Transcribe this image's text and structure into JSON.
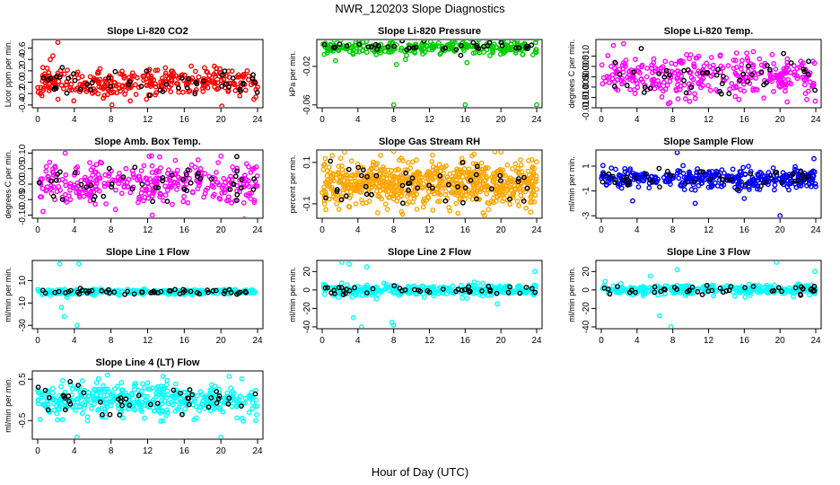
{
  "figure": {
    "title": "NWR_120203  Slope Diagnostics",
    "xlabel": "Hour of Day (UTC)",
    "x_ticks": [
      0,
      4,
      8,
      12,
      16,
      20,
      24
    ]
  },
  "chart_data": [
    {
      "type": "scatter",
      "title": "Slope Li-820 CO2",
      "ylabel": "Licor ppm per min.",
      "xlim": [
        0,
        24
      ],
      "ylim": [
        -0.45,
        0.75
      ],
      "y_ticks": [
        -0.4,
        -0.2,
        0.0,
        0.2,
        0.4,
        0.6
      ],
      "y_tick_labels": [
        "-0.4",
        "-0.2",
        "0.0",
        "0.2",
        "0.4",
        "0.6"
      ],
      "colors": {
        "main": "#ff0000",
        "highlight": "#000000"
      },
      "seed": 11,
      "n_main": 320,
      "n_high": 50,
      "spread": 0.13,
      "outliers": [
        [
          2.2,
          0.7
        ],
        [
          8.1,
          -0.4
        ],
        [
          20.1,
          -0.42
        ],
        [
          23.6,
          -0.3
        ]
      ]
    },
    {
      "type": "scatter",
      "title": "Slope Li-820 Pressure",
      "ylabel": "kPa per min.",
      "xlim": [
        0,
        24
      ],
      "ylim": [
        -0.063,
        0.008
      ],
      "y_ticks": [
        -0.06,
        -0.02
      ],
      "y_tick_labels": [
        "-0.06",
        "-0.02"
      ],
      "colors": {
        "main": "#00cc00",
        "highlight": "#000000"
      },
      "seed": 23,
      "n_main": 260,
      "n_high": 40,
      "spread": 0.0035,
      "outliers": [
        [
          1.5,
          -0.014
        ],
        [
          8.0,
          -0.06
        ],
        [
          16.0,
          -0.06
        ],
        [
          24.0,
          -0.06
        ],
        [
          8.3,
          -0.018
        ],
        [
          16.2,
          -0.016
        ]
      ]
    },
    {
      "type": "scatter",
      "title": "Slope Li-820 Temp.",
      "ylabel": "degrees C per min.",
      "xlim": [
        0,
        24
      ],
      "ylim": [
        -0.015,
        0.018
      ],
      "y_ticks": [
        -0.015,
        -0.01,
        -0.005,
        0.0,
        0.005,
        0.01
      ],
      "y_tick_labels": [
        "-0.015",
        "-0.010",
        "-0.005",
        "0.000",
        "0.005",
        "0.010"
      ],
      "colors": {
        "main": "#ff00ff",
        "highlight": "#000000"
      },
      "seed": 37,
      "n_main": 330,
      "n_high": 45,
      "spread": 0.005,
      "outliers": [
        [
          7.5,
          -0.013
        ],
        [
          2.5,
          0.016
        ],
        [
          23.0,
          -0.011
        ]
      ]
    },
    {
      "type": "scatter",
      "title": "Slope Amb. Box Temp.",
      "ylabel": "degrees C per min.",
      "xlim": [
        0,
        24
      ],
      "ylim": [
        -0.11,
        0.11
      ],
      "y_ticks": [
        -0.1,
        -0.05,
        0.0,
        0.05,
        0.1
      ],
      "y_tick_labels": [
        "-0.10",
        "-0.05",
        "0.00",
        "0.05",
        "0.10"
      ],
      "colors": {
        "main": "#ff00ff",
        "highlight": "#000000"
      },
      "seed": 41,
      "n_main": 330,
      "n_high": 50,
      "spread": 0.035,
      "outliers": [
        [
          3.0,
          0.1
        ],
        [
          12.5,
          -0.1
        ],
        [
          20.0,
          0.09
        ]
      ]
    },
    {
      "type": "scatter",
      "title": "Slope Gas Stream RH",
      "ylabel": "percent per min.",
      "xlim": [
        0,
        24
      ],
      "ylim": [
        -0.17,
        0.16
      ],
      "y_ticks": [
        -0.1,
        0.1
      ],
      "y_tick_labels": [
        "-0.1",
        "0.1"
      ],
      "colors": {
        "main": "#ffa500",
        "highlight": "#000000"
      },
      "seed": 53,
      "n_main": 700,
      "n_high": 45,
      "spread": 0.055,
      "outliers": [
        [
          2.5,
          0.15
        ],
        [
          9.0,
          -0.15
        ],
        [
          17.0,
          0.14
        ]
      ]
    },
    {
      "type": "scatter",
      "title": "Slope Sample Flow",
      "ylabel": "ml/min per min.",
      "xlim": [
        0,
        24
      ],
      "ylim": [
        -3.2,
        2.3
      ],
      "y_ticks": [
        -3,
        -1,
        1
      ],
      "y_tick_labels": [
        "-3",
        "-1",
        "1"
      ],
      "colors": {
        "main": "#0000ff",
        "highlight": "#000000"
      },
      "seed": 61,
      "n_main": 380,
      "n_high": 45,
      "spread": 0.4,
      "outliers": [
        [
          8.5,
          2.1
        ],
        [
          20.0,
          -3.0
        ],
        [
          3.5,
          -1.8
        ],
        [
          23.8,
          1.6
        ],
        [
          10.5,
          -2.0
        ]
      ]
    },
    {
      "type": "scatter",
      "title": "Slope Line 1 Flow",
      "ylabel": "ml/min per min.",
      "xlim": [
        0,
        24
      ],
      "ylim": [
        -33,
        28
      ],
      "y_ticks": [
        -30,
        -10,
        10
      ],
      "y_tick_labels": [
        "-30",
        "-10",
        "10"
      ],
      "colors": {
        "main": "#00ffff",
        "highlight": "#000000"
      },
      "seed": 71,
      "n_main": 260,
      "n_high": 55,
      "spread": 1.2,
      "outliers": [
        [
          2.4,
          25
        ],
        [
          4.5,
          25
        ],
        [
          2.6,
          -14
        ],
        [
          2.9,
          -22
        ],
        [
          4.3,
          -30
        ],
        [
          3.2,
          -5
        ]
      ]
    },
    {
      "type": "scatter",
      "title": "Slope Line 2 Flow",
      "ylabel": "ml/min per min.",
      "xlim": [
        0,
        24
      ],
      "ylim": [
        -42,
        32
      ],
      "y_ticks": [
        -40,
        -20,
        0,
        20
      ],
      "y_tick_labels": [
        "-40",
        "-20",
        "0",
        "20"
      ],
      "colors": {
        "main": "#00ffff",
        "highlight": "#000000"
      },
      "seed": 83,
      "n_main": 300,
      "n_high": 45,
      "spread": 3.0,
      "outliers": [
        [
          2.2,
          30
        ],
        [
          3.0,
          28
        ],
        [
          3.5,
          -30
        ],
        [
          4.4,
          -40
        ],
        [
          7.8,
          -35
        ],
        [
          8.0,
          -38
        ],
        [
          19.6,
          -15
        ],
        [
          23.8,
          20
        ],
        [
          5.0,
          25
        ]
      ]
    },
    {
      "type": "scatter",
      "title": "Slope Line 3 Flow",
      "ylabel": "ml/min per min.",
      "xlim": [
        0,
        24
      ],
      "ylim": [
        -42,
        32
      ],
      "y_ticks": [
        -40,
        -20,
        0,
        20
      ],
      "y_tick_labels": [
        "-40",
        "-20",
        "0",
        "20"
      ],
      "colors": {
        "main": "#00ffff",
        "highlight": "#000000"
      },
      "seed": 97,
      "n_main": 300,
      "n_high": 45,
      "spread": 3.0,
      "outliers": [
        [
          7.8,
          -40
        ],
        [
          6.5,
          -28
        ],
        [
          19.6,
          30
        ],
        [
          23.9,
          20
        ],
        [
          8.5,
          22
        ],
        [
          5.5,
          15
        ]
      ]
    },
    {
      "type": "scatter",
      "title": "Slope Line 4 (LT) Flow",
      "ylabel": "ml/min per min.",
      "xlim": [
        0,
        24
      ],
      "ylim": [
        -0.95,
        0.7
      ],
      "y_ticks": [
        -0.5,
        0.5
      ],
      "y_tick_labels": [
        "-0.5",
        "0.5"
      ],
      "colors": {
        "main": "#00ffff",
        "highlight": "#000000"
      },
      "seed": 101,
      "n_main": 420,
      "n_high": 45,
      "spread": 0.2,
      "outliers": [
        [
          4.3,
          -0.9
        ],
        [
          7.6,
          0.6
        ],
        [
          20.0,
          -0.9
        ],
        [
          23.8,
          -0.5
        ]
      ]
    }
  ]
}
